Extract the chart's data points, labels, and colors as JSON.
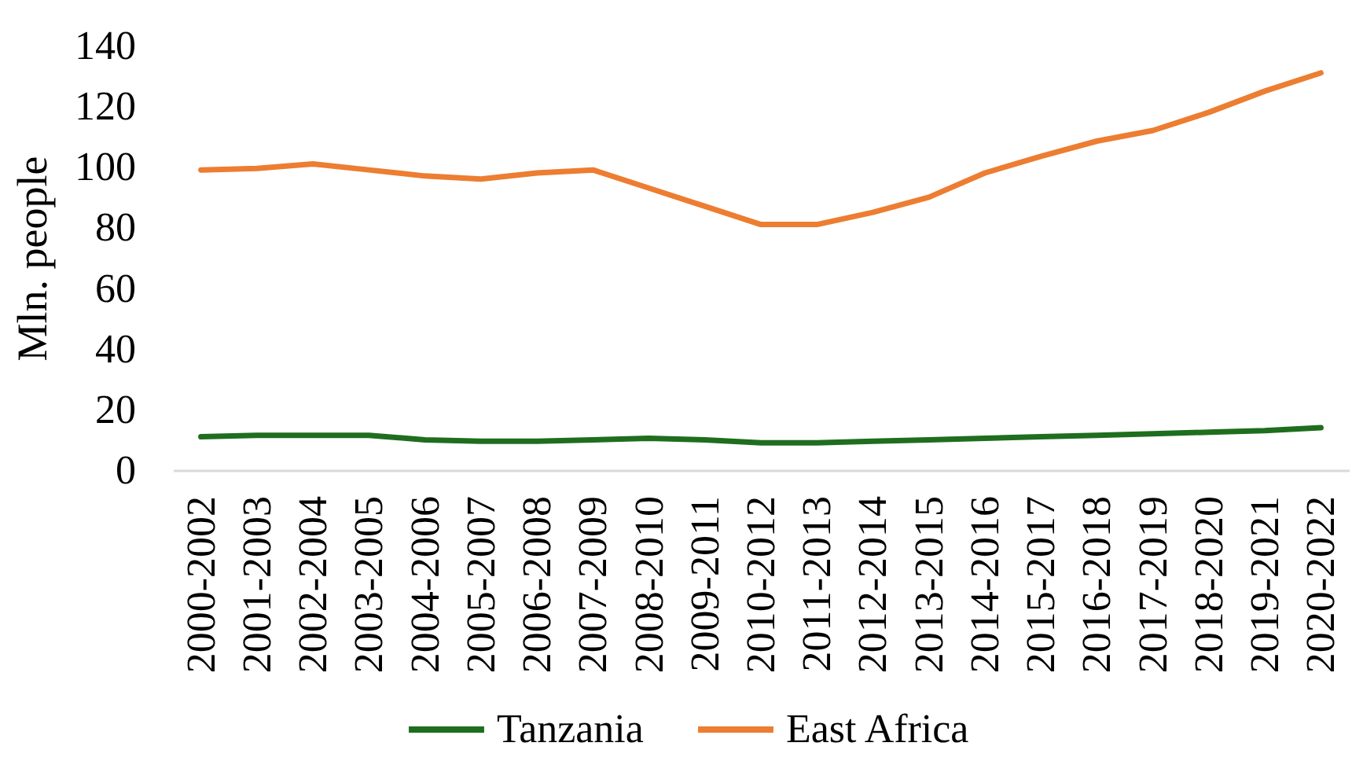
{
  "chart_data": {
    "type": "line",
    "ylabel": "Mln. people",
    "categories": [
      "2000-2002",
      "2001-2003",
      "2002-2004",
      "2003-2005",
      "2004-2006",
      "2005-2007",
      "2006-2008",
      "2007-2009",
      "2008-2010",
      "2009-2011",
      "2010-2012",
      "2011-2013",
      "2012-2014",
      "2013-2015",
      "2014-2016",
      "2015-2017",
      "2016-2018",
      "2017-2019",
      "2018-2020",
      "2019-2021",
      "2020-2022"
    ],
    "series": [
      {
        "name": "Tanzania",
        "color": "#1e6e1e",
        "values": [
          11,
          11.5,
          11.5,
          11.5,
          10,
          9.5,
          9.5,
          10,
          10.5,
          10,
          9,
          9,
          9.5,
          10,
          10.5,
          11,
          11.5,
          12,
          12.5,
          13,
          14
        ]
      },
      {
        "name": "East Africa",
        "color": "#ed7d31",
        "values": [
          99,
          99.5,
          101,
          99,
          97,
          96,
          98,
          99,
          93,
          87,
          81,
          81,
          85,
          90,
          98,
          103.5,
          108.5,
          112,
          118,
          125,
          131
        ]
      }
    ],
    "ylim": [
      0,
      140
    ],
    "yticks": [
      0,
      20,
      40,
      60,
      80,
      100,
      120,
      140
    ],
    "grid": false,
    "legend": "bottom",
    "line_style": "solid"
  }
}
